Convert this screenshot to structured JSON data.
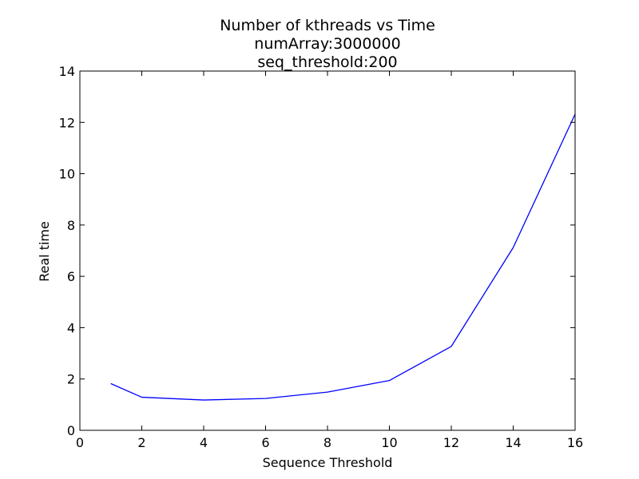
{
  "chart_data": {
    "type": "line",
    "title_lines": [
      "Number of kthreads vs Time",
      "numArray:3000000",
      "seq_threshold:200"
    ],
    "xlabel": "Sequence Threshold",
    "ylabel": "Real time",
    "xlim": [
      0,
      16
    ],
    "ylim": [
      0,
      14
    ],
    "xticks": [
      0,
      2,
      4,
      6,
      8,
      10,
      12,
      14,
      16
    ],
    "yticks": [
      0,
      2,
      4,
      6,
      8,
      10,
      12,
      14
    ],
    "grid": false,
    "series": [
      {
        "color": "#0000ff",
        "x": [
          1,
          2,
          4,
          6,
          8,
          10,
          12,
          14,
          16
        ],
        "y": [
          1.82,
          1.29,
          1.18,
          1.24,
          1.49,
          1.94,
          3.27,
          7.12,
          12.32
        ]
      }
    ]
  }
}
